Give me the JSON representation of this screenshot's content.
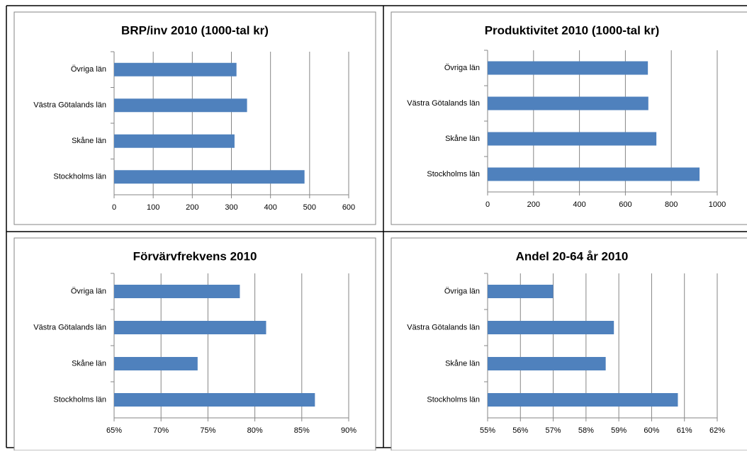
{
  "chart_data": [
    {
      "type": "bar",
      "orientation": "horizontal",
      "title": "BRP/inv 2010 (1000-tal kr)",
      "categories": [
        "Övriga län",
        "Västra Götalands län",
        "Skåne län",
        "Stockholms län"
      ],
      "values": [
        313,
        340,
        308,
        487
      ],
      "color": "#4f81bd",
      "xlim": [
        0,
        600
      ],
      "xticks": [
        0,
        100,
        200,
        300,
        400,
        500,
        600
      ],
      "grid": true
    },
    {
      "type": "bar",
      "orientation": "horizontal",
      "title": "Produktivitet 2010 (1000-tal kr)",
      "categories": [
        "Övriga län",
        "Västra Götalands län",
        "Skåne län",
        "Stockholms län"
      ],
      "values": [
        698,
        700,
        735,
        923
      ],
      "color": "#4f81bd",
      "xlim": [
        0,
        1000
      ],
      "xticks": [
        0,
        200,
        400,
        600,
        800,
        1000
      ],
      "grid": true
    },
    {
      "type": "bar",
      "orientation": "horizontal",
      "title": "Förvärvfrekvens 2010",
      "categories": [
        "Övriga län",
        "Västra Götalands län",
        "Skåne län",
        "Stockholms län"
      ],
      "values": [
        78.4,
        81.2,
        73.9,
        86.4
      ],
      "color": "#4f81bd",
      "xlim": [
        65,
        90
      ],
      "xticks": [
        {
          "value": 65,
          "label": "65%"
        },
        {
          "value": 70,
          "label": "70%"
        },
        {
          "value": 75,
          "label": "75%"
        },
        {
          "value": 80,
          "label": "80%"
        },
        {
          "value": 85,
          "label": "85%"
        },
        {
          "value": 90,
          "label": "90%"
        }
      ],
      "grid": true
    },
    {
      "type": "bar",
      "orientation": "horizontal",
      "title": "Andel 20-64 år 2010",
      "categories": [
        "Övriga län",
        "Västra Götalands län",
        "Skåne län",
        "Stockholms län"
      ],
      "values": [
        57.0,
        58.85,
        58.6,
        60.8
      ],
      "color": "#4f81bd",
      "xlim": [
        55,
        62
      ],
      "xticks": [
        {
          "value": 55,
          "label": "55%"
        },
        {
          "value": 56,
          "label": "56%"
        },
        {
          "value": 57,
          "label": "57%"
        },
        {
          "value": 58,
          "label": "58%"
        },
        {
          "value": 59,
          "label": "59%"
        },
        {
          "value": 60,
          "label": "60%"
        },
        {
          "value": 61,
          "label": "61%"
        },
        {
          "value": 62,
          "label": "62%"
        }
      ],
      "grid": true
    }
  ]
}
